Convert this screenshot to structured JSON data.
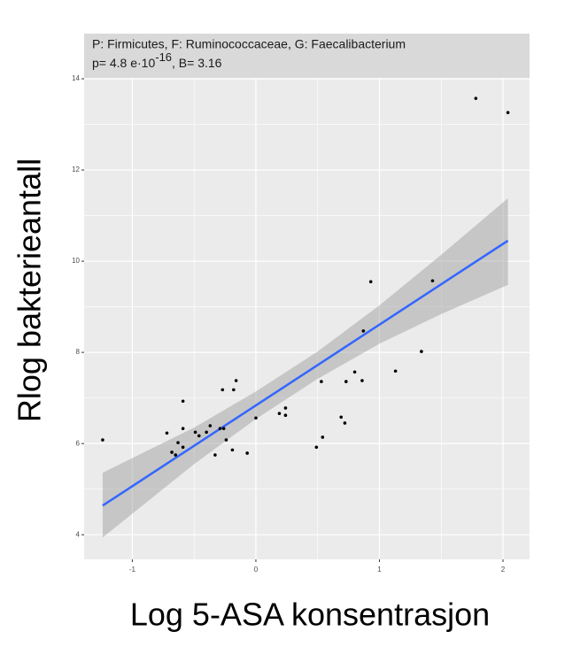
{
  "chart_data": {
    "type": "scatter",
    "strip": {
      "line1": "P: Firmicutes,  F: Ruminococcaceae, G: Faecalibacterium",
      "line2_a": "p= 4.8 e·10",
      "line2_sup": "-16",
      "line2_b": ", B= 3.16"
    },
    "x_label": "Log 5-ASA konsentrasjon",
    "y_label": "Rlog bakterieantall",
    "xlim": [
      -1.39,
      2.215
    ],
    "ylim": [
      3.46,
      14.02
    ],
    "xticks": [
      -1,
      0,
      1,
      2
    ],
    "yticks": [
      4,
      6,
      8,
      10,
      12,
      14
    ],
    "grid": true,
    "points": {
      "color": "#000000",
      "x": [
        -1.24,
        -0.72,
        -0.59,
        -0.59,
        -0.68,
        -0.65,
        -0.63,
        -0.59,
        -0.49,
        -0.46,
        -0.4,
        -0.37,
        -0.33,
        -0.29,
        -0.26,
        -0.27,
        -0.24,
        -0.19,
        -0.18,
        -0.16,
        -0.07,
        0.0,
        0.19,
        0.24,
        0.24,
        0.49,
        0.53,
        0.54,
        0.69,
        0.72,
        0.73,
        0.8,
        0.86,
        0.87,
        0.93,
        1.13,
        1.34,
        1.43,
        1.78,
        2.04
      ],
      "y": [
        6.08,
        6.23,
        6.93,
        6.33,
        5.81,
        5.75,
        6.02,
        5.92,
        6.25,
        6.17,
        6.25,
        6.39,
        5.75,
        6.33,
        6.33,
        7.18,
        6.08,
        5.86,
        7.18,
        7.38,
        5.79,
        6.56,
        6.66,
        6.62,
        6.78,
        5.92,
        7.36,
        6.14,
        6.58,
        6.45,
        7.36,
        7.57,
        7.38,
        8.47,
        9.55,
        7.59,
        8.02,
        9.57,
        13.57,
        13.26
      ]
    },
    "fit": {
      "color": "#3366ff",
      "x": [
        -1.24,
        2.04
      ],
      "y": [
        4.64,
        10.45
      ]
    },
    "band": {
      "color": "#999999",
      "x": [
        -1.24,
        -0.5,
        0,
        0.5,
        1,
        1.5,
        2.04
      ],
      "lower": [
        3.94,
        5.55,
        6.54,
        7.42,
        8.19,
        8.84,
        9.48
      ],
      "upper": [
        5.36,
        6.35,
        7.14,
        8.02,
        9.03,
        10.14,
        11.38
      ]
    }
  }
}
